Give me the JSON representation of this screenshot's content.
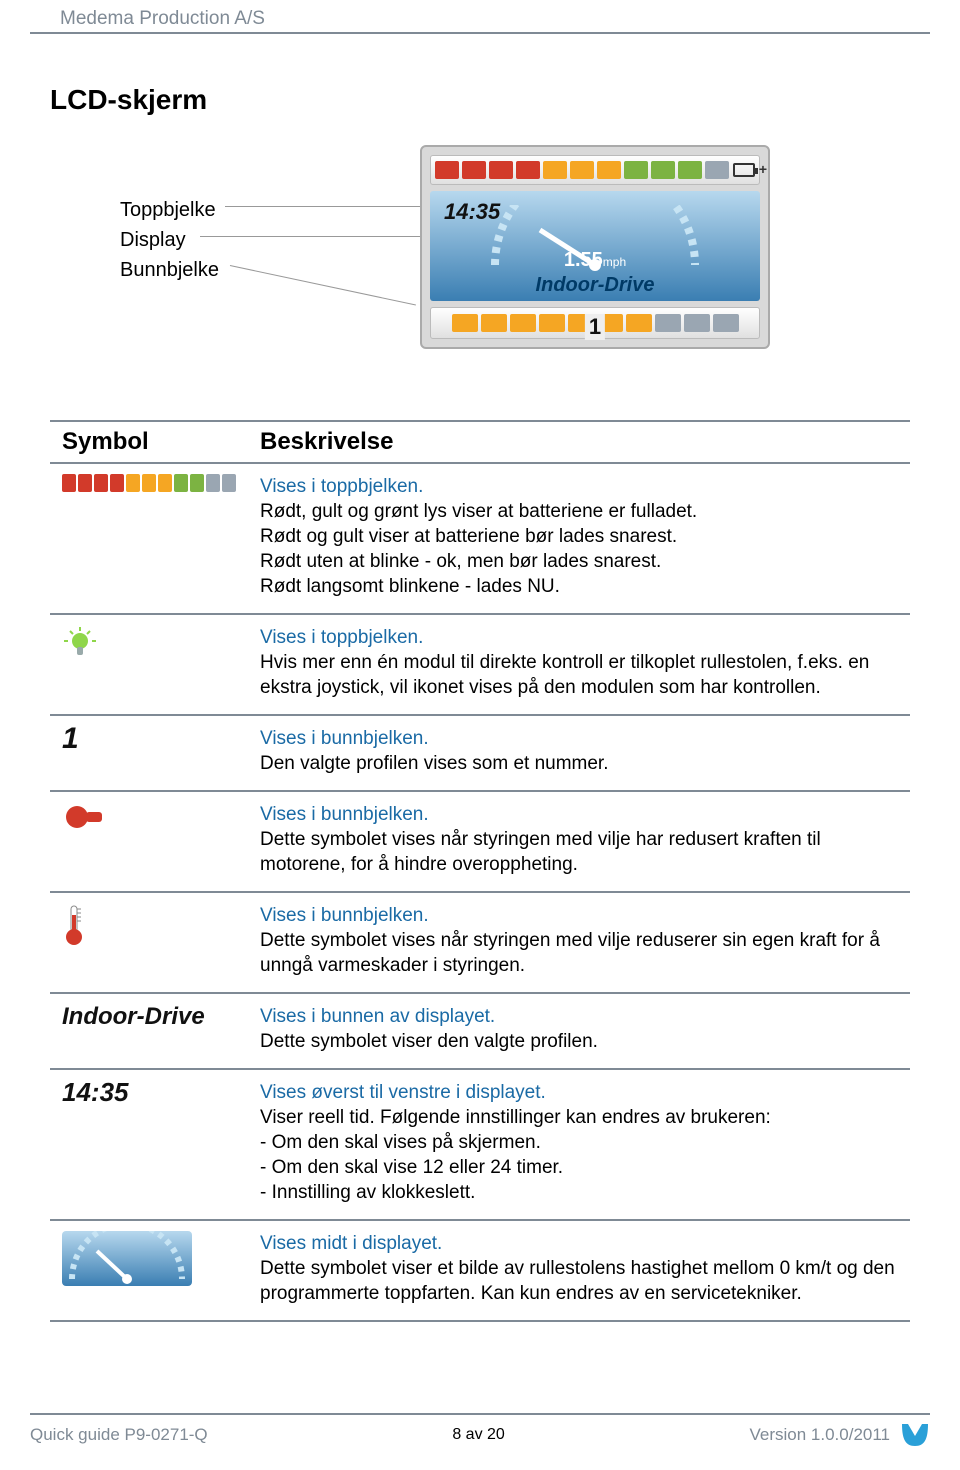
{
  "header": {
    "company": "Medema Production A/S"
  },
  "section_title": "LCD-skjerm",
  "labels": {
    "top": "Toppbjelke",
    "display": "Display",
    "bottom": "Bunnbjelke"
  },
  "lcd": {
    "time": "14:35",
    "speed_val": "1.55",
    "speed_unit": "mph",
    "profile_name": "Indoor-Drive",
    "profile_num": "1",
    "top_segments": [
      "r",
      "r",
      "r",
      "r",
      "o",
      "o",
      "o",
      "g",
      "g",
      "g",
      "gray"
    ],
    "bot_segments": [
      "o",
      "o",
      "o",
      "o",
      "o",
      "o",
      "o",
      "gray",
      "gray",
      "gray"
    ]
  },
  "table": {
    "head_symbol": "Symbol",
    "head_desc": "Beskrivelse",
    "rows": [
      {
        "icon": "bars",
        "lines": [
          "Vises i toppbjelken.",
          "Rødt, gult og grønt lys viser at batteriene er fulladet.",
          "Rødt og gult viser at batteriene bør lades snarest.",
          "Rødt uten at blinke - ok, men bør lades snarest.",
          "Rødt langsomt blinkene - lades NU."
        ]
      },
      {
        "icon": "bulb",
        "lines": [
          "Vises i toppbjelken.",
          "Hvis mer enn én modul til direkte kontroll er tilkoplet rullestolen, f.eks. en ekstra joystick, vil ikonet vises på den modulen som har kontrollen."
        ]
      },
      {
        "icon": "one",
        "lines": [
          "Vises i bunnbjelken.",
          "Den valgte profilen vises som et nummer."
        ]
      },
      {
        "icon": "motor",
        "lines": [
          "Vises i bunnbjelken.",
          "Dette symbolet vises når styringen med vilje har redusert kraften til motorene, for å hindre overoppheting."
        ]
      },
      {
        "icon": "thermo",
        "lines": [
          "Vises i bunnbjelken.",
          "Dette symbolet vises når styringen med vilje reduserer sin egen kraft for å unngå varmeskader i styringen."
        ]
      },
      {
        "icon": "indoor",
        "lines": [
          "Vises i bunnen av displayet.",
          "Dette symbolet viser den valgte profilen."
        ]
      },
      {
        "icon": "time",
        "lines": [
          "Vises øverst til venstre i displayet.",
          "Viser reell tid. Følgende innstillinger kan endres av brukeren:",
          "- Om den skal vises på skjermen.",
          "- Om den skal vise 12 eller 24 timer.",
          "- Innstilling av klokkeslett."
        ]
      },
      {
        "icon": "speedo",
        "lines": [
          "Vises midt i displayet.",
          "Dette symbolet viser et bilde av rullestolens hastighet mellom 0 km/t og den programmerte toppfarten. Kan kun endres av en servicetekniker."
        ]
      }
    ]
  },
  "footer": {
    "left": "Quick guide P9-0271-Q",
    "center": "8 av 20",
    "right": "Version 1.0.0/2011"
  },
  "bars_mini": [
    "r",
    "r",
    "r",
    "r",
    "o",
    "o",
    "o",
    "g",
    "g",
    "gray",
    "gray"
  ],
  "colors": {
    "r": "#d23a2a",
    "o": "#f5a623",
    "g": "#7cb342",
    "gray": "#9aa6b2"
  }
}
